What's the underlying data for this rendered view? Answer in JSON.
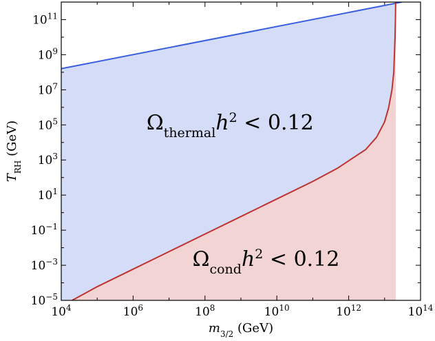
{
  "chart_data": {
    "type": "area",
    "x_scale": "log",
    "y_scale": "log",
    "xlim": [
      10000,
      100000000000000
    ],
    "ylim": [
      1e-05,
      1000000000000
    ],
    "xlabel": {
      "base": "m",
      "sub": "3/2",
      "unit": " (GeV)"
    },
    "ylabel": {
      "base": "T",
      "sub": "RH",
      "unit": " (GeV)"
    },
    "x_ticks": [
      {
        "value": 10000,
        "base": "10",
        "exp": "4"
      },
      {
        "value": 1000000,
        "base": "10",
        "exp": "6"
      },
      {
        "value": 100000000,
        "base": "10",
        "exp": "8"
      },
      {
        "value": 10000000000,
        "base": "10",
        "exp": "10"
      },
      {
        "value": 1000000000000,
        "base": "10",
        "exp": "12"
      },
      {
        "value": 100000000000000,
        "base": "10",
        "exp": "14"
      }
    ],
    "y_ticks": [
      {
        "value": 1e-05,
        "base": "10",
        "exp": "−5"
      },
      {
        "value": 0.001,
        "base": "10",
        "exp": "−3"
      },
      {
        "value": 0.1,
        "base": "10",
        "exp": "−1"
      },
      {
        "value": 10,
        "base": "10",
        "exp": "1"
      },
      {
        "value": 1000,
        "base": "10",
        "exp": "3"
      },
      {
        "value": 100000,
        "base": "10",
        "exp": "5"
      },
      {
        "value": 10000000,
        "base": "10",
        "exp": "7"
      },
      {
        "value": 1000000000,
        "base": "10",
        "exp": "9"
      },
      {
        "value": 100000000000,
        "base": "10",
        "exp": "11"
      }
    ],
    "grid": false,
    "series": [
      {
        "color": "#3a5fdc",
        "fill": "#d4dcf7",
        "x": [
          10000,
          30000000000000
        ],
        "y": [
          160000000,
          1000000000000
        ]
      },
      {
        "color": "#c0322e",
        "fill": "#f2d4d5",
        "x": [
          10000,
          20000,
          100000,
          1000000,
          10000000,
          100000000,
          1000000000,
          10000000000,
          100000000000,
          500000000000,
          1000000000000,
          3000000000000,
          6000000000000,
          10000000000000,
          13000000000000,
          16000000000000,
          18000000000000,
          19500000000000,
          20000000000000,
          20300000000000,
          20500000000000
        ],
        "y": [
          3e-06,
          1e-05,
          6e-05,
          0.0006,
          0.006,
          0.06,
          0.6,
          6,
          60,
          350,
          900,
          4000,
          20000,
          150000,
          1000000,
          10000000,
          100000000,
          10000000000,
          100000000000,
          1000000000000,
          1000000000000
        ]
      }
    ],
    "annotations": [
      {
        "id": "thermal",
        "base": "Ω",
        "sub": "thermal",
        "mid": "h",
        "sup": "2",
        "tail": " < 0.12",
        "x": 500000000,
        "y": 150000
      },
      {
        "id": "cond",
        "base": "Ω",
        "sub": "cond",
        "mid": "h",
        "sup": "2",
        "tail": " < 0.12",
        "x": 5000000000,
        "y": 0.0025
      }
    ]
  }
}
